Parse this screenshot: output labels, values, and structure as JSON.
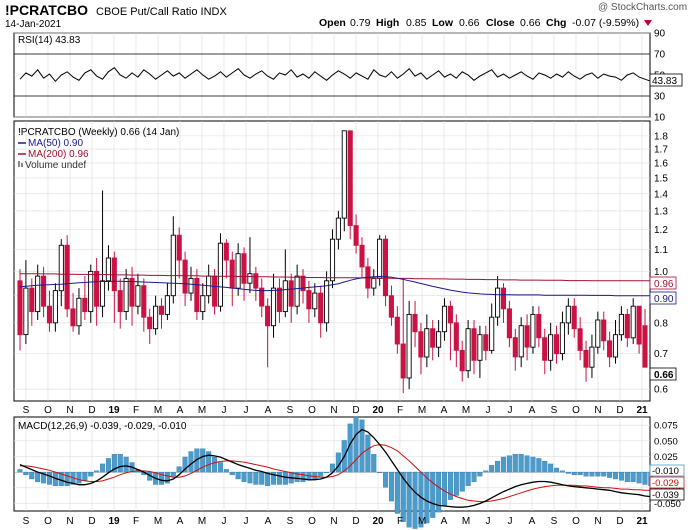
{
  "header": {
    "symbol": "!PCRATCBO",
    "name": "CBOE Put/Call Ratio INDX",
    "date": "14-Jan-2021",
    "watermark": "@ StockCharts.com",
    "open_label": "Open",
    "open": "0.79",
    "high_label": "High",
    "high": "0.85",
    "low_label": "Low",
    "low": "0.66",
    "close_label": "Close",
    "close": "0.66",
    "chg_label": "Chg",
    "chg": "-0.07 (-9.59%)"
  },
  "colors": {
    "up": "#ffffff",
    "down": "#cc1144",
    "ma50": "#1a1a8c",
    "ma200": "#a01030",
    "macd": "#000000",
    "signal": "#cc1111",
    "hist": "#4a9ccc",
    "grid": "#dddddd"
  },
  "rsi": {
    "label": "RSI(14) 43.83",
    "current": 43.83,
    "ylim": [
      10,
      90
    ],
    "ticks": [
      "90",
      "70",
      "50",
      "30",
      "10"
    ],
    "overbought": 70,
    "oversold": 30,
    "values": [
      46,
      52,
      49,
      55,
      47,
      51,
      44,
      50,
      53,
      48,
      45,
      52,
      55,
      49,
      46,
      53,
      57,
      50,
      47,
      52,
      48,
      55,
      51,
      46,
      50,
      54,
      49,
      52,
      47,
      51,
      55,
      50,
      46,
      49,
      53,
      48,
      52,
      56,
      50,
      47,
      51,
      54,
      49,
      46,
      52,
      50,
      55,
      48,
      51,
      47,
      53,
      49,
      45,
      50,
      54,
      51,
      47,
      52,
      49,
      46,
      55,
      50,
      48,
      53,
      47,
      51,
      56,
      49,
      52,
      46,
      50,
      54,
      48,
      51,
      47,
      53,
      50,
      45,
      49,
      52,
      55,
      48,
      51,
      47,
      50,
      53,
      49,
      46,
      52,
      50,
      47,
      51,
      48,
      53,
      49,
      46,
      50,
      52,
      47,
      51,
      49,
      48,
      45,
      50,
      52,
      48,
      46,
      44
    ]
  },
  "price": {
    "label": "!PCRATCBO (Weekly) 0.66 (14 Jan)",
    "ma50_label": "MA(50) 0.90",
    "ma200_label": "MA(200) 0.96",
    "volume_label": "Volume undef",
    "ma50_end": "0.90",
    "ma200_end": "0.96",
    "close_end": "0.66",
    "ticks": [
      "1.8",
      "1.7",
      "1.6",
      "1.5",
      "1.4",
      "1.3",
      "1.2",
      "1.1",
      "1.0",
      "0.9",
      "0.8",
      "0.7",
      "0.6"
    ],
    "scale": "log"
  },
  "chart_data": {
    "type": "candlestick",
    "period": "weekly",
    "x_labels": [
      "S",
      "O",
      "N",
      "D",
      "19",
      "F",
      "M",
      "A",
      "M",
      "J",
      "J",
      "A",
      "S",
      "O",
      "N",
      "D",
      "20",
      "F",
      "M",
      "A",
      "M",
      "J",
      "J",
      "A",
      "S",
      "O",
      "N",
      "D",
      "21"
    ],
    "ylim": [
      0.57,
      1.92
    ],
    "candles": [
      [
        0.96,
        0.76,
        1.01,
        0.71
      ],
      [
        0.76,
        0.93,
        1.05,
        0.73
      ],
      [
        0.93,
        0.84,
        0.97,
        0.79
      ],
      [
        0.84,
        0.98,
        1.03,
        0.81
      ],
      [
        0.98,
        0.86,
        1.02,
        0.82
      ],
      [
        0.86,
        0.8,
        0.92,
        0.77
      ],
      [
        0.8,
        0.92,
        0.95,
        0.77
      ],
      [
        0.92,
        1.12,
        1.15,
        0.86
      ],
      [
        1.12,
        0.85,
        1.17,
        0.82
      ],
      [
        0.85,
        0.79,
        0.91,
        0.77
      ],
      [
        0.79,
        0.89,
        0.93,
        0.76
      ],
      [
        0.89,
        0.84,
        0.98,
        0.81
      ],
      [
        0.84,
        1.0,
        1.03,
        0.8
      ],
      [
        1.0,
        0.86,
        1.06,
        0.79
      ],
      [
        0.86,
        0.96,
        1.42,
        0.82
      ],
      [
        0.96,
        1.06,
        1.12,
        0.92
      ],
      [
        1.06,
        0.92,
        1.09,
        0.8
      ],
      [
        0.92,
        0.84,
        0.97,
        0.78
      ],
      [
        0.84,
        0.97,
        1.01,
        0.81
      ],
      [
        0.97,
        0.86,
        1.02,
        0.79
      ],
      [
        0.86,
        0.94,
        0.99,
        0.83
      ],
      [
        0.94,
        0.82,
        0.97,
        0.77
      ],
      [
        0.82,
        0.78,
        0.85,
        0.73
      ],
      [
        0.78,
        0.86,
        0.9,
        0.76
      ],
      [
        0.86,
        0.83,
        0.89,
        0.78
      ],
      [
        0.83,
        0.9,
        0.95,
        0.81
      ],
      [
        0.9,
        1.17,
        1.27,
        0.87
      ],
      [
        1.17,
        1.05,
        1.21,
        0.97
      ],
      [
        1.05,
        0.91,
        1.09,
        0.86
      ],
      [
        0.91,
        0.97,
        1.02,
        0.88
      ],
      [
        0.97,
        0.84,
        1.01,
        0.81
      ],
      [
        0.84,
        0.9,
        0.95,
        0.81
      ],
      [
        0.9,
        0.98,
        1.03,
        0.87
      ],
      [
        0.98,
        0.86,
        1.01,
        0.83
      ],
      [
        0.86,
        1.13,
        1.18,
        0.84
      ],
      [
        1.13,
        1.05,
        1.15,
        0.97
      ],
      [
        1.05,
        0.93,
        1.09,
        0.86
      ],
      [
        0.93,
        1.08,
        1.13,
        0.9
      ],
      [
        1.08,
        0.95,
        1.11,
        0.88
      ],
      [
        0.95,
        0.99,
        1.16,
        0.91
      ],
      [
        0.99,
        0.93,
        1.02,
        0.88
      ],
      [
        0.93,
        0.86,
        0.97,
        0.82
      ],
      [
        0.86,
        0.79,
        0.89,
        0.66
      ],
      [
        0.79,
        0.93,
        0.99,
        0.75
      ],
      [
        0.93,
        0.84,
        0.97,
        0.8
      ],
      [
        0.84,
        0.96,
        1.1,
        0.82
      ],
      [
        0.96,
        0.86,
        0.99,
        0.8
      ],
      [
        0.86,
        0.98,
        1.03,
        0.83
      ],
      [
        0.98,
        0.92,
        1.01,
        0.87
      ],
      [
        0.92,
        0.85,
        0.96,
        0.8
      ],
      [
        0.85,
        0.91,
        0.95,
        0.82
      ],
      [
        0.91,
        0.8,
        0.94,
        0.75
      ],
      [
        0.8,
        0.96,
        1.0,
        0.77
      ],
      [
        0.96,
        1.15,
        1.2,
        0.93
      ],
      [
        1.15,
        1.26,
        1.3,
        1.1
      ],
      [
        1.26,
        1.84,
        1.84,
        1.19
      ],
      [
        1.84,
        1.22,
        1.84,
        1.15
      ],
      [
        1.22,
        1.12,
        1.28,
        1.08
      ],
      [
        1.12,
        1.02,
        1.16,
        0.97
      ],
      [
        1.02,
        0.93,
        1.06,
        0.89
      ],
      [
        0.93,
        0.97,
        1.01,
        0.9
      ],
      [
        0.97,
        1.15,
        1.17,
        0.94
      ],
      [
        1.15,
        0.9,
        1.17,
        0.86
      ],
      [
        0.9,
        0.82,
        0.94,
        0.79
      ],
      [
        0.82,
        0.73,
        0.86,
        0.7
      ],
      [
        0.73,
        0.63,
        0.97,
        0.59
      ],
      [
        0.63,
        0.83,
        0.88,
        0.6
      ],
      [
        0.83,
        0.77,
        0.88,
        0.72
      ],
      [
        0.77,
        0.69,
        0.8,
        0.64
      ],
      [
        0.69,
        0.78,
        0.83,
        0.66
      ],
      [
        0.78,
        0.72,
        0.81,
        0.68
      ],
      [
        0.72,
        0.77,
        0.81,
        0.69
      ],
      [
        0.77,
        0.86,
        0.89,
        0.74
      ],
      [
        0.86,
        0.8,
        0.88,
        0.68
      ],
      [
        0.8,
        0.71,
        0.83,
        0.66
      ],
      [
        0.71,
        0.65,
        0.74,
        0.62
      ],
      [
        0.65,
        0.78,
        0.81,
        0.63
      ],
      [
        0.78,
        0.68,
        0.81,
        0.64
      ],
      [
        0.68,
        0.76,
        0.79,
        0.63
      ],
      [
        0.76,
        0.71,
        0.79,
        0.68
      ],
      [
        0.71,
        0.82,
        0.87,
        0.7
      ],
      [
        0.82,
        0.93,
        0.98,
        0.79
      ],
      [
        0.93,
        0.85,
        0.95,
        0.8
      ],
      [
        0.85,
        0.75,
        0.88,
        0.72
      ],
      [
        0.75,
        0.69,
        0.78,
        0.65
      ],
      [
        0.69,
        0.79,
        0.82,
        0.66
      ],
      [
        0.79,
        0.72,
        0.83,
        0.68
      ],
      [
        0.72,
        0.83,
        0.86,
        0.7
      ],
      [
        0.83,
        0.75,
        0.86,
        0.72
      ],
      [
        0.75,
        0.68,
        0.78,
        0.64
      ],
      [
        0.68,
        0.76,
        0.8,
        0.65
      ],
      [
        0.76,
        0.7,
        0.79,
        0.67
      ],
      [
        0.7,
        0.8,
        0.84,
        0.68
      ],
      [
        0.8,
        0.86,
        0.89,
        0.76
      ],
      [
        0.86,
        0.78,
        0.89,
        0.75
      ],
      [
        0.78,
        0.71,
        0.82,
        0.68
      ],
      [
        0.71,
        0.66,
        0.74,
        0.62
      ],
      [
        0.66,
        0.72,
        0.76,
        0.63
      ],
      [
        0.72,
        0.81,
        0.84,
        0.7
      ],
      [
        0.81,
        0.74,
        0.84,
        0.71
      ],
      [
        0.74,
        0.69,
        0.77,
        0.66
      ],
      [
        0.69,
        0.76,
        0.81,
        0.67
      ],
      [
        0.76,
        0.83,
        0.86,
        0.74
      ],
      [
        0.83,
        0.75,
        0.85,
        0.72
      ],
      [
        0.75,
        0.86,
        0.89,
        0.73
      ],
      [
        0.86,
        0.73,
        0.86,
        0.7
      ],
      [
        0.79,
        0.66,
        0.85,
        0.66
      ]
    ],
    "ma50": [
      0.935,
      0.938,
      0.94,
      0.942,
      0.943,
      0.944,
      0.945,
      0.946,
      0.948,
      0.95,
      0.952,
      0.953,
      0.955,
      0.956,
      0.957,
      0.957,
      0.958,
      0.958,
      0.957,
      0.957,
      0.956,
      0.955,
      0.954,
      0.953,
      0.952,
      0.951,
      0.95,
      0.949,
      0.948,
      0.946,
      0.944,
      0.942,
      0.94,
      0.937,
      0.935,
      0.933,
      0.93,
      0.928,
      0.925,
      0.923,
      0.921,
      0.92,
      0.92,
      0.921,
      0.922,
      0.924,
      0.926,
      0.928,
      0.93,
      0.933,
      0.935,
      0.937,
      0.94,
      0.944,
      0.948,
      0.955,
      0.962,
      0.968,
      0.972,
      0.975,
      0.977,
      0.978,
      0.977,
      0.975,
      0.971,
      0.966,
      0.96,
      0.955,
      0.949,
      0.943,
      0.937,
      0.932,
      0.927,
      0.922,
      0.918,
      0.914,
      0.911,
      0.909,
      0.907,
      0.906,
      0.905,
      0.904,
      0.904,
      0.904,
      0.903,
      0.903,
      0.903,
      0.903,
      0.903,
      0.902,
      0.902,
      0.902,
      0.902,
      0.902,
      0.902,
      0.902,
      0.902,
      0.901,
      0.901,
      0.901,
      0.901,
      0.9,
      0.9,
      0.9,
      0.9,
      0.9,
      0.9,
      0.9
    ],
    "ma200": [
      0.99,
      0.99,
      0.99,
      0.99,
      0.989,
      0.989,
      0.989,
      0.988,
      0.988,
      0.988,
      0.987,
      0.987,
      0.987,
      0.986,
      0.986,
      0.986,
      0.985,
      0.985,
      0.985,
      0.984,
      0.984,
      0.984,
      0.983,
      0.983,
      0.983,
      0.982,
      0.982,
      0.982,
      0.981,
      0.981,
      0.981,
      0.98,
      0.98,
      0.98,
      0.979,
      0.979,
      0.979,
      0.978,
      0.978,
      0.978,
      0.977,
      0.977,
      0.977,
      0.976,
      0.976,
      0.976,
      0.975,
      0.975,
      0.975,
      0.974,
      0.974,
      0.974,
      0.973,
      0.973,
      0.973,
      0.973,
      0.973,
      0.973,
      0.972,
      0.972,
      0.972,
      0.971,
      0.971,
      0.971,
      0.97,
      0.97,
      0.97,
      0.969,
      0.969,
      0.969,
      0.968,
      0.968,
      0.968,
      0.967,
      0.967,
      0.967,
      0.966,
      0.966,
      0.966,
      0.965,
      0.965,
      0.965,
      0.964,
      0.964,
      0.964,
      0.963,
      0.963,
      0.963,
      0.963,
      0.962,
      0.962,
      0.962,
      0.962,
      0.961,
      0.961,
      0.961,
      0.961,
      0.96,
      0.96,
      0.96,
      0.96,
      0.96,
      0.96,
      0.96,
      0.96,
      0.96,
      0.96,
      0.96
    ]
  },
  "macd": {
    "label": "MACD(12,26,9) -0.039, -0.029, -0.010",
    "ticks": [
      "0.075",
      "0.050",
      "0.025",
      "0.000",
      "-0.025",
      "-0.050"
    ],
    "end_labels": [
      "-0.010",
      "-0.029",
      "-0.039"
    ],
    "ylim": [
      -0.062,
      0.088
    ],
    "macd_line": [
      0.012,
      0.008,
      0.004,
      0.0,
      -0.003,
      -0.006,
      -0.01,
      -0.013,
      -0.016,
      -0.018,
      -0.02,
      -0.02,
      -0.018,
      -0.014,
      -0.008,
      -0.001,
      0.005,
      0.009,
      0.01,
      0.008,
      0.004,
      0.0,
      -0.005,
      -0.01,
      -0.013,
      -0.014,
      -0.011,
      -0.004,
      0.005,
      0.013,
      0.02,
      0.025,
      0.027,
      0.026,
      0.024,
      0.02,
      0.016,
      0.012,
      0.009,
      0.006,
      0.003,
      0.001,
      -0.002,
      -0.004,
      -0.006,
      -0.008,
      -0.009,
      -0.01,
      -0.011,
      -0.012,
      -0.012,
      -0.011,
      -0.008,
      -0.001,
      0.01,
      0.025,
      0.045,
      0.06,
      0.068,
      0.064,
      0.055,
      0.044,
      0.032,
      0.018,
      0.004,
      -0.01,
      -0.022,
      -0.032,
      -0.04,
      -0.046,
      -0.05,
      -0.053,
      -0.054,
      -0.055,
      -0.056,
      -0.056,
      -0.055,
      -0.053,
      -0.05,
      -0.046,
      -0.041,
      -0.036,
      -0.031,
      -0.027,
      -0.023,
      -0.02,
      -0.018,
      -0.016,
      -0.015,
      -0.015,
      -0.016,
      -0.018,
      -0.02,
      -0.022,
      -0.023,
      -0.024,
      -0.025,
      -0.026,
      -0.027,
      -0.028,
      -0.029,
      -0.031,
      -0.033,
      -0.034,
      -0.035,
      -0.036,
      -0.038,
      -0.039
    ],
    "signal_line": [
      0.01,
      0.01,
      0.009,
      0.007,
      0.005,
      0.003,
      0.0,
      -0.003,
      -0.006,
      -0.009,
      -0.012,
      -0.014,
      -0.015,
      -0.015,
      -0.014,
      -0.011,
      -0.008,
      -0.004,
      -0.001,
      0.001,
      0.002,
      0.002,
      0.001,
      -0.001,
      -0.004,
      -0.006,
      -0.008,
      -0.008,
      -0.006,
      -0.002,
      0.003,
      0.008,
      0.012,
      0.015,
      0.017,
      0.018,
      0.018,
      0.017,
      0.016,
      0.014,
      0.012,
      0.01,
      0.008,
      0.005,
      0.003,
      0.001,
      -0.001,
      -0.003,
      -0.004,
      -0.006,
      -0.007,
      -0.008,
      -0.008,
      -0.007,
      -0.004,
      0.002,
      0.01,
      0.02,
      0.03,
      0.037,
      0.042,
      0.044,
      0.043,
      0.039,
      0.034,
      0.026,
      0.018,
      0.009,
      0.0,
      -0.009,
      -0.017,
      -0.024,
      -0.03,
      -0.035,
      -0.039,
      -0.042,
      -0.045,
      -0.046,
      -0.047,
      -0.047,
      -0.046,
      -0.044,
      -0.042,
      -0.039,
      -0.036,
      -0.033,
      -0.03,
      -0.027,
      -0.025,
      -0.023,
      -0.022,
      -0.021,
      -0.021,
      -0.021,
      -0.021,
      -0.022,
      -0.022,
      -0.023,
      -0.024,
      -0.025,
      -0.025,
      -0.026,
      -0.027,
      -0.027,
      -0.028,
      -0.028,
      -0.029,
      -0.029
    ]
  }
}
